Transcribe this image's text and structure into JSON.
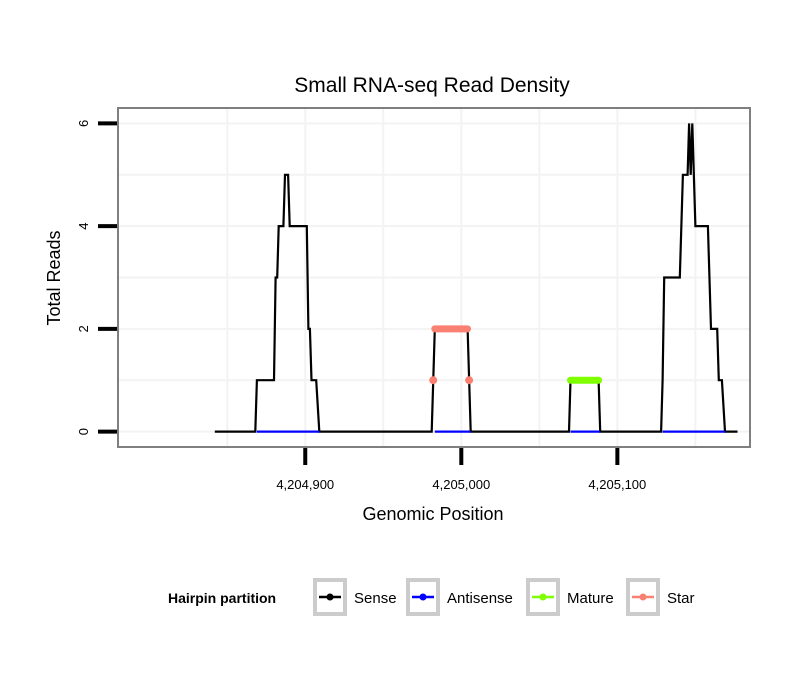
{
  "chart_data": {
    "type": "line",
    "title": "Small RNA-seq Read Density",
    "xlabel": "Genomic Position",
    "ylabel": "Total Reads",
    "xlim": [
      4204780,
      4205185
    ],
    "ylim": [
      -0.3,
      6.3
    ],
    "x_ticks": [
      4204900,
      4205000,
      4205100
    ],
    "x_tick_labels": [
      "4,204,900",
      "4,205,000",
      "4,205,100"
    ],
    "y_ticks": [
      0,
      2,
      4,
      6
    ],
    "y_tick_labels": [
      "0",
      "2",
      "4",
      "6"
    ],
    "grid": true,
    "legend": {
      "title": "Hairpin partition",
      "position": "bottom",
      "entries": [
        {
          "name": "Sense",
          "color": "#000000"
        },
        {
          "name": "Antisense",
          "color": "#0000ff"
        },
        {
          "name": "Mature",
          "color": "#7fff00"
        },
        {
          "name": "Star",
          "color": "#fa8072"
        }
      ]
    },
    "series": [
      {
        "name": "Sense",
        "color": "#000000",
        "points": [
          [
            4204842,
            0
          ],
          [
            4204868,
            0
          ],
          [
            4204869,
            1
          ],
          [
            4204880,
            1
          ],
          [
            4204881,
            3
          ],
          [
            4204882,
            3
          ],
          [
            4204883,
            4
          ],
          [
            4204886,
            4
          ],
          [
            4204887,
            5
          ],
          [
            4204889,
            5
          ],
          [
            4204890,
            4
          ],
          [
            4204901,
            4
          ],
          [
            4204902,
            2
          ],
          [
            4204903,
            2
          ],
          [
            4204904,
            1
          ],
          [
            4204907,
            1
          ],
          [
            4204909,
            0
          ],
          [
            4204981,
            0
          ],
          [
            4204983,
            2
          ],
          [
            4205004,
            2
          ],
          [
            4205006,
            0
          ],
          [
            4205069,
            0
          ],
          [
            4205070,
            1
          ],
          [
            4205088,
            1
          ],
          [
            4205089,
            0
          ],
          [
            4205128,
            0
          ],
          [
            4205129,
            1
          ],
          [
            4205130,
            3
          ],
          [
            4205140,
            3
          ],
          [
            4205142,
            5
          ],
          [
            4205145,
            5
          ],
          [
            4205146,
            6
          ],
          [
            4205147,
            5
          ],
          [
            4205148,
            6
          ],
          [
            4205150,
            4
          ],
          [
            4205158,
            4
          ],
          [
            4205160,
            2
          ],
          [
            4205164,
            2
          ],
          [
            4205165,
            1
          ],
          [
            4205167,
            1
          ],
          [
            4205169,
            0
          ],
          [
            4205177,
            0
          ]
        ]
      },
      {
        "name": "Antisense",
        "color": "#0000ff",
        "segments": [
          [
            [
              4204869,
              0
            ],
            [
              4204909,
              0
            ]
          ],
          [
            [
              4204983,
              0
            ],
            [
              4205006,
              0
            ]
          ],
          [
            [
              4205070,
              0
            ],
            [
              4205089,
              0
            ]
          ],
          [
            [
              4205129,
              0
            ],
            [
              4205169,
              0
            ]
          ]
        ]
      },
      {
        "name": "Mature",
        "color": "#7fff00",
        "segments": [
          [
            [
              4205070,
              1
            ],
            [
              4205088,
              1
            ]
          ]
        ]
      },
      {
        "name": "Star",
        "color": "#fa8072",
        "segments": [
          [
            [
              4204983,
              2
            ],
            [
              4205004,
              2
            ]
          ]
        ],
        "points": [
          [
            4204982,
            1
          ],
          [
            4205005,
            1
          ]
        ]
      }
    ]
  }
}
